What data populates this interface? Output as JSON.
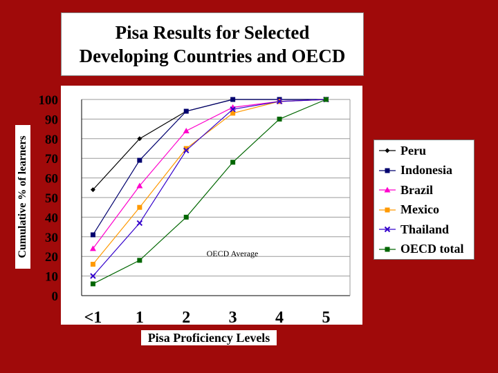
{
  "chart_data": {
    "type": "line",
    "title_lines": [
      "Pisa Results for Selected",
      "Developing Countries and OECD"
    ],
    "xlabel": "Pisa Proficiency Levels",
    "ylabel": "Cumulative % of learners",
    "categories": [
      "<1",
      "1",
      "2",
      "3",
      "4",
      "5"
    ],
    "y_ticks": [
      "0",
      "10",
      "20",
      "30",
      "40",
      "50",
      "60",
      "70",
      "80",
      "90",
      "100"
    ],
    "ylim": [
      0,
      100
    ],
    "grid": "horizontal",
    "legend_position": "right",
    "annotation": "OECD Average",
    "series": [
      {
        "name": "Peru",
        "color": "#000000",
        "marker": "diamond",
        "values": [
          54,
          80,
          94,
          100,
          100,
          100
        ]
      },
      {
        "name": "Indonesia",
        "color": "#00006e",
        "marker": "square",
        "values": [
          31,
          69,
          94,
          100,
          100,
          100
        ]
      },
      {
        "name": "Brazil",
        "color": "#ff00cc",
        "marker": "triangle",
        "values": [
          24,
          56,
          84,
          96,
          99,
          100
        ]
      },
      {
        "name": "Mexico",
        "color": "#ff9900",
        "marker": "square",
        "values": [
          16,
          45,
          75,
          93,
          99,
          100
        ]
      },
      {
        "name": "Thailand",
        "color": "#3300cc",
        "marker": "x",
        "values": [
          10,
          37,
          74,
          95,
          99,
          100
        ]
      },
      {
        "name": "OECD total",
        "color": "#006600",
        "marker": "square",
        "values": [
          6,
          18,
          40,
          68,
          90,
          100
        ]
      }
    ]
  }
}
